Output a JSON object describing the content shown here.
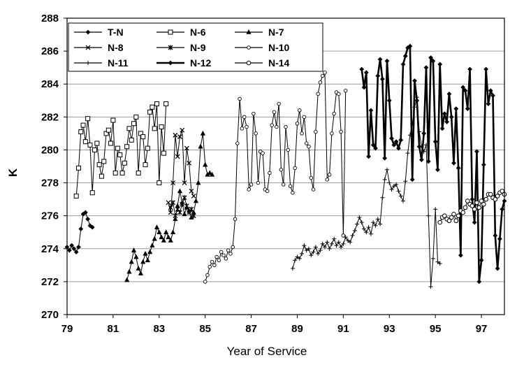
{
  "chart_data": {
    "type": "line",
    "title": "",
    "xlabel": "Year of Service",
    "ylabel": "K",
    "xlim": [
      79,
      98
    ],
    "ylim": [
      270,
      288
    ],
    "x_ticks": [
      79,
      81,
      83,
      85,
      87,
      89,
      91,
      93,
      95,
      97
    ],
    "y_ticks": [
      270,
      272,
      274,
      276,
      278,
      280,
      282,
      284,
      286,
      288
    ],
    "grid": "horizontal",
    "legend_position": "top-left",
    "series": [
      {
        "name": "T-N",
        "marker": "diamond",
        "x": [
          79.0,
          79.1,
          79.2,
          79.3,
          79.4,
          79.5,
          79.6,
          79.7,
          79.8,
          79.9,
          80.0,
          80.1
        ],
        "y": [
          274.1,
          273.9,
          274.2,
          274.0,
          273.8,
          274.1,
          275.2,
          276.1,
          276.2,
          275.8,
          275.4,
          275.3
        ]
      },
      {
        "name": "N-6",
        "marker": "square",
        "x": [
          79.4,
          79.5,
          79.6,
          79.7,
          79.8,
          79.9,
          80.0,
          80.1,
          80.2,
          80.3,
          80.4,
          80.5,
          80.6,
          80.7,
          80.8,
          80.9,
          81.0,
          81.1,
          81.2,
          81.3,
          81.4,
          81.5,
          81.6,
          81.7,
          81.8,
          81.9,
          82.0,
          82.1,
          82.2,
          82.3,
          82.4,
          82.5,
          82.6,
          82.7,
          82.8,
          82.9,
          83.0,
          83.1,
          83.2,
          83.3
        ],
        "y": [
          277.2,
          278.9,
          281.1,
          281.5,
          280.5,
          281.9,
          280.3,
          277.4,
          280.0,
          280.4,
          279.1,
          278.4,
          279.3,
          281.0,
          281.2,
          280.4,
          281.8,
          278.6,
          280.1,
          279.7,
          278.6,
          279.2,
          280.2,
          281.3,
          280.6,
          281.6,
          282.0,
          278.6,
          281.0,
          280.8,
          279.1,
          280.1,
          282.3,
          282.6,
          281.3,
          282.8,
          278.0,
          281.4,
          279.8,
          282.8
        ]
      },
      {
        "name": "N-7",
        "marker": "triangle",
        "x": [
          81.6,
          81.7,
          81.8,
          81.9,
          82.0,
          82.1,
          82.2,
          82.3,
          82.4,
          82.5,
          82.6,
          82.7,
          82.8,
          82.9,
          83.0,
          83.1,
          83.2,
          83.3,
          83.4,
          83.5,
          83.6,
          83.7,
          83.8,
          83.9,
          84.0,
          84.1,
          84.2,
          84.3,
          84.4,
          84.5,
          84.6,
          84.7,
          84.8,
          84.9,
          85.0,
          85.1,
          85.2,
          85.3
        ],
        "y": [
          272.1,
          272.6,
          273.2,
          273.9,
          273.5,
          272.8,
          272.5,
          273.2,
          273.7,
          273.3,
          273.8,
          274.2,
          274.6,
          275.3,
          275.0,
          274.7,
          274.5,
          275.0,
          274.7,
          274.5,
          275.0,
          275.8,
          276.6,
          277.5,
          276.8,
          276.1,
          276.5,
          276.3,
          275.9,
          276.2,
          276.9,
          278.0,
          280.2,
          281.0,
          279.1,
          278.5,
          278.6,
          278.5
        ]
      },
      {
        "name": "N-8",
        "marker": "cross",
        "x": [
          83.4,
          83.5,
          83.6,
          83.7,
          83.8,
          83.9,
          84.0,
          84.1,
          84.2,
          84.3,
          84.4,
          84.5
        ],
        "y": [
          276.8,
          276.2,
          278.0,
          280.9,
          279.6,
          280.8,
          281.2,
          278.0,
          280.1,
          279.2,
          277.5,
          277.2
        ]
      },
      {
        "name": "N-9",
        "marker": "star",
        "x": [
          83.5,
          83.6,
          83.7,
          83.8,
          83.9,
          84.0,
          84.1,
          84.2,
          84.3,
          84.4,
          84.5
        ],
        "y": [
          276.5,
          276.8,
          276.0,
          276.4,
          276.2,
          276.7,
          277.1,
          276.6,
          276.2,
          276.4,
          276.0
        ]
      },
      {
        "name": "N-10",
        "marker": "circle-small",
        "x": [
          85.0,
          85.1,
          85.2,
          85.3,
          85.4,
          85.5,
          85.6,
          85.7,
          85.8,
          85.9,
          86.0,
          86.1,
          86.2,
          86.3,
          86.4,
          86.5,
          86.6,
          86.7,
          86.8,
          86.9,
          87.0,
          87.1,
          87.2,
          87.3,
          87.4,
          87.5,
          87.6,
          87.7,
          87.8,
          87.9,
          88.0,
          88.1,
          88.2,
          88.3,
          88.4,
          88.5,
          88.6,
          88.7,
          88.8,
          88.9,
          89.0,
          89.1,
          89.2,
          89.3,
          89.4,
          89.5,
          89.6,
          89.7,
          89.8,
          89.9,
          90.0,
          90.1,
          90.2,
          90.3,
          90.4,
          90.5,
          90.6,
          90.7,
          90.8,
          90.9,
          91.0,
          91.1
        ],
        "y": [
          272.0,
          272.4,
          272.9,
          273.2,
          273.0,
          273.5,
          273.3,
          273.8,
          273.6,
          273.4,
          273.9,
          273.7,
          274.1,
          275.8,
          280.4,
          283.1,
          281.3,
          282.0,
          281.4,
          277.6,
          277.9,
          282.2,
          281.0,
          278.0,
          279.9,
          279.8,
          277.6,
          277.5,
          278.6,
          281.5,
          282.3,
          281.4,
          282.8,
          278.8,
          277.9,
          281.4,
          280.0,
          277.8,
          277.4,
          278.9,
          281.6,
          282.4,
          281.0,
          282.0,
          280.4,
          280.2,
          278.3,
          277.6,
          281.1,
          283.4,
          284.1,
          284.5,
          284.7,
          278.2,
          278.5,
          281.0,
          282.2,
          283.5,
          283.4,
          281.1,
          274.8,
          283.6
        ]
      },
      {
        "name": "N-11",
        "marker": "plus",
        "x": [
          88.8,
          88.9,
          89.0,
          89.1,
          89.2,
          89.3,
          89.4,
          89.5,
          89.6,
          89.7,
          89.8,
          89.9,
          90.0,
          90.1,
          90.2,
          90.3,
          90.4,
          90.5,
          90.6,
          90.7,
          90.8,
          90.9,
          91.0,
          91.1,
          91.2,
          91.3,
          91.4,
          91.5,
          91.6,
          91.7,
          91.8,
          91.9,
          92.0,
          92.1,
          92.2,
          92.3,
          92.4,
          92.5,
          92.6,
          92.7,
          92.8,
          92.9,
          93.0,
          93.1,
          93.2,
          93.3,
          93.4,
          93.5,
          93.6,
          93.7,
          93.8,
          93.9,
          94.0,
          94.1,
          94.2,
          94.3,
          94.4,
          94.5,
          94.6,
          94.7,
          94.8,
          94.9,
          95.0,
          95.1,
          95.2
        ],
        "y": [
          272.8,
          273.3,
          273.5,
          273.4,
          273.7,
          274.2,
          273.9,
          274.0,
          273.6,
          273.8,
          274.1,
          273.7,
          273.9,
          274.3,
          274.1,
          274.4,
          274.0,
          274.3,
          274.6,
          274.2,
          274.4,
          274.1,
          274.3,
          274.7,
          274.5,
          274.4,
          274.8,
          275.1,
          275.5,
          275.9,
          275.6,
          275.2,
          275.0,
          275.3,
          274.9,
          275.6,
          275.4,
          275.8,
          275.5,
          277.1,
          278.2,
          278.8,
          278.0,
          277.6,
          277.8,
          277.9,
          277.5,
          277.2,
          276.9,
          278.1,
          279.8,
          280.9,
          281.6,
          282.6,
          283.2,
          281.1,
          280.2,
          279.9,
          280.3,
          276.0,
          271.7,
          273.4,
          276.4,
          273.2,
          273.1
        ]
      },
      {
        "name": "N-12",
        "marker": "diamond-bold",
        "x": [
          91.8,
          91.9,
          92.0,
          92.1,
          92.2,
          92.3,
          92.4,
          92.5,
          92.6,
          92.7,
          92.8,
          92.9,
          93.0,
          93.1,
          93.2,
          93.3,
          93.4,
          93.5,
          93.6,
          93.7,
          93.8,
          93.9,
          94.0,
          94.1,
          94.2,
          94.3,
          94.4,
          94.5,
          94.6,
          94.7,
          94.8,
          94.9,
          95.0,
          95.1,
          95.2,
          95.3,
          95.4,
          95.5,
          95.6,
          95.7,
          95.8,
          95.9,
          96.0,
          96.1,
          96.2,
          96.3,
          96.4,
          96.5,
          96.6,
          96.7,
          96.8,
          96.9,
          97.0,
          97.1,
          97.2,
          97.3,
          97.4,
          97.5,
          97.6,
          97.7,
          97.8,
          97.9,
          98.0
        ],
        "y": [
          284.9,
          283.8,
          284.7,
          279.6,
          282.4,
          280.3,
          280.1,
          284.5,
          285.5,
          284.3,
          279.5,
          285.4,
          283.0,
          280.7,
          280.3,
          280.5,
          280.1,
          280.6,
          285.2,
          285.7,
          286.2,
          286.3,
          278.2,
          284.2,
          283.0,
          280.2,
          279.4,
          281.0,
          285.0,
          279.3,
          285.6,
          285.4,
          280.5,
          278.8,
          285.2,
          281.3,
          282.2,
          281.7,
          283.4,
          282.0,
          279.2,
          282.5,
          278.9,
          273.6,
          283.8,
          283.6,
          282.5,
          284.9,
          277.0,
          275.6,
          279.9,
          272.0,
          273.3,
          279.1,
          284.9,
          282.8,
          283.6,
          283.3,
          274.8,
          272.8,
          274.6,
          276.4,
          276.9
        ]
      },
      {
        "name": "N-14",
        "marker": "circle",
        "x": [
          95.2,
          95.3,
          95.4,
          95.5,
          95.6,
          95.7,
          95.8,
          95.9,
          96.0,
          96.1,
          96.2,
          96.3,
          96.4,
          96.5,
          96.6,
          96.7,
          96.8,
          96.9,
          97.0,
          97.1,
          97.2,
          97.3,
          97.4,
          97.5,
          97.6,
          97.7,
          97.8,
          97.9,
          98.0
        ],
        "y": [
          275.6,
          275.9,
          276.0,
          275.8,
          275.7,
          275.9,
          276.1,
          275.7,
          276.0,
          276.3,
          276.2,
          276.5,
          276.9,
          276.7,
          276.6,
          276.4,
          276.8,
          276.5,
          276.9,
          276.7,
          277.0,
          277.3,
          277.3,
          277.1,
          277.0,
          277.2,
          277.4,
          277.5,
          277.3
        ]
      }
    ]
  }
}
